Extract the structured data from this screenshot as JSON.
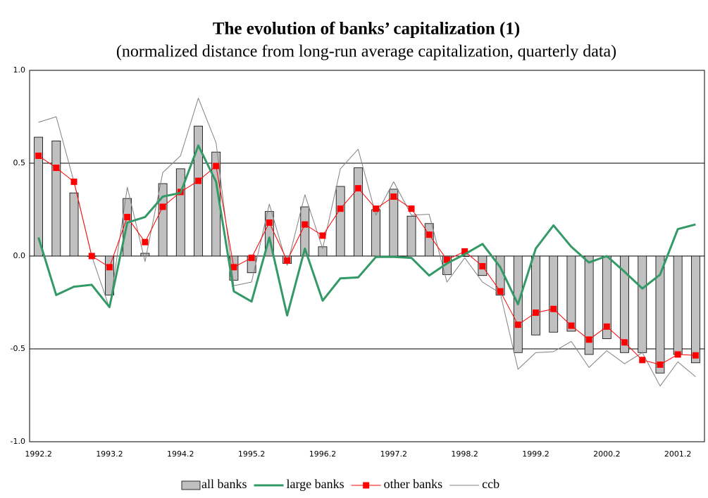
{
  "chart_data": {
    "type": "bar_line",
    "title": "The evolution of banks’ capitalization (1)",
    "subtitle": "(normalized distance from long-run average capitalization, quarterly data)",
    "categories": [
      "1992.2",
      null,
      null,
      null,
      "1993.2",
      null,
      null,
      null,
      "1994.2",
      null,
      null,
      null,
      "1995.2",
      null,
      null,
      null,
      "1996.2",
      null,
      null,
      null,
      "1997.2",
      null,
      null,
      null,
      "1998.2",
      null,
      null,
      null,
      "1999.2",
      null,
      null,
      null,
      "2000.2",
      null,
      null,
      null,
      "2001.2",
      null
    ],
    "series": [
      {
        "name": "all banks",
        "type": "bar",
        "color": "#c0c0c0",
        "values": [
          0.64,
          0.62,
          0.34,
          0.0,
          -0.21,
          0.31,
          0.015,
          0.39,
          0.47,
          0.7,
          0.56,
          -0.13,
          -0.09,
          0.24,
          -0.04,
          0.265,
          0.05,
          0.375,
          0.475,
          0.25,
          0.36,
          0.215,
          0.175,
          -0.1,
          0.0,
          -0.105,
          -0.21,
          -0.52,
          -0.425,
          -0.41,
          -0.405,
          -0.53,
          -0.445,
          -0.52,
          -0.52,
          -0.63,
          -0.53,
          -0.575
        ]
      },
      {
        "name": "large banks",
        "type": "line",
        "color": "#339966",
        "values": [
          0.1,
          -0.21,
          -0.165,
          -0.155,
          -0.275,
          0.18,
          0.21,
          0.32,
          0.34,
          0.595,
          0.4,
          -0.19,
          -0.245,
          0.1,
          -0.32,
          0.04,
          -0.24,
          -0.12,
          -0.115,
          -0.005,
          -0.005,
          -0.01,
          -0.105,
          -0.04,
          0.01,
          0.065,
          -0.06,
          -0.26,
          0.04,
          0.165,
          0.05,
          -0.035,
          0.0,
          -0.085,
          -0.175,
          -0.1,
          0.145,
          0.17
        ]
      },
      {
        "name": "other banks",
        "type": "line-marker",
        "color": "#ff0000",
        "values": [
          0.54,
          0.475,
          0.4,
          0.0,
          -0.06,
          0.21,
          0.075,
          0.265,
          0.345,
          0.405,
          0.485,
          -0.06,
          -0.01,
          0.18,
          -0.025,
          0.17,
          0.11,
          0.255,
          0.365,
          0.255,
          0.32,
          0.255,
          0.115,
          -0.02,
          0.025,
          -0.055,
          -0.19,
          -0.37,
          -0.305,
          -0.285,
          -0.375,
          -0.45,
          -0.38,
          -0.465,
          -0.56,
          -0.585,
          -0.53,
          -0.535
        ]
      },
      {
        "name": "ccb",
        "type": "line",
        "color": "#808080",
        "values": [
          0.72,
          0.75,
          0.4,
          0.0,
          -0.28,
          0.37,
          -0.03,
          0.45,
          0.54,
          0.85,
          0.61,
          -0.16,
          -0.14,
          0.28,
          -0.05,
          0.33,
          0.04,
          0.47,
          0.575,
          0.22,
          0.4,
          0.22,
          0.225,
          -0.14,
          -0.01,
          -0.14,
          -0.2,
          -0.61,
          -0.52,
          -0.515,
          -0.46,
          -0.6,
          -0.51,
          -0.58,
          -0.52,
          -0.7,
          -0.57,
          -0.65
        ]
      }
    ],
    "ylim": [
      -1.0,
      1.0
    ],
    "yticks": [
      {
        "value": -1.0,
        "label": "-1.0"
      },
      -0.5,
      {
        "value": 0.0,
        "label": "0.0"
      },
      0.5,
      {
        "value": 1.0,
        "label": "1.0"
      }
    ],
    "grid": true,
    "legend": "bottom"
  }
}
